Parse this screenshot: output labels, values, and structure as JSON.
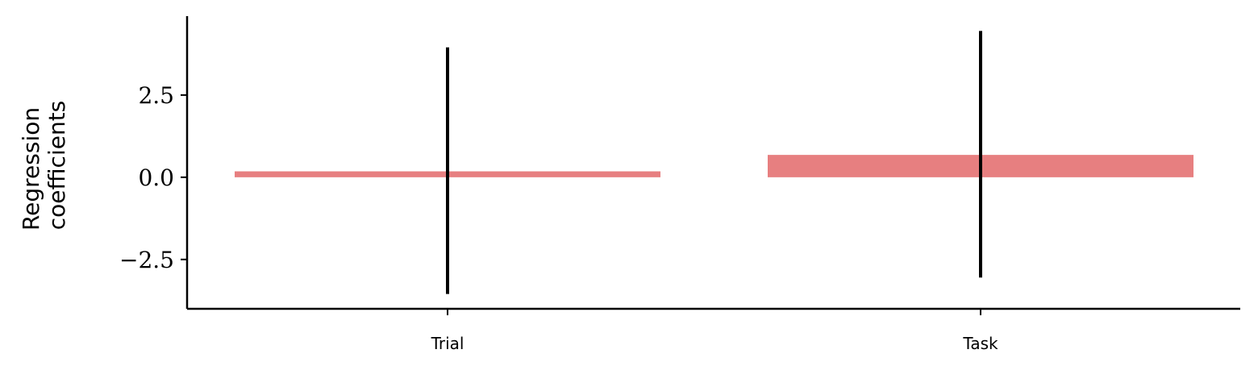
{
  "chart_data": {
    "type": "bar",
    "categories": [
      "Trial",
      "Task"
    ],
    "values": [
      0.18,
      0.68
    ],
    "error_low": [
      -3.55,
      -3.05
    ],
    "error_high": [
      3.95,
      4.45
    ],
    "title": "",
    "xlabel": "",
    "ylabel_lines": [
      "Regression",
      "coefficients"
    ],
    "ylim": [
      -4.0,
      4.9
    ],
    "yticks": [
      2.5,
      0.0,
      -2.5
    ],
    "ytick_labels": [
      "2.5",
      "0.0",
      "−2.5"
    ],
    "grid": false,
    "colors": {
      "bar": "#e77f80",
      "errorbar": "#000000",
      "axis": "#000000"
    }
  }
}
